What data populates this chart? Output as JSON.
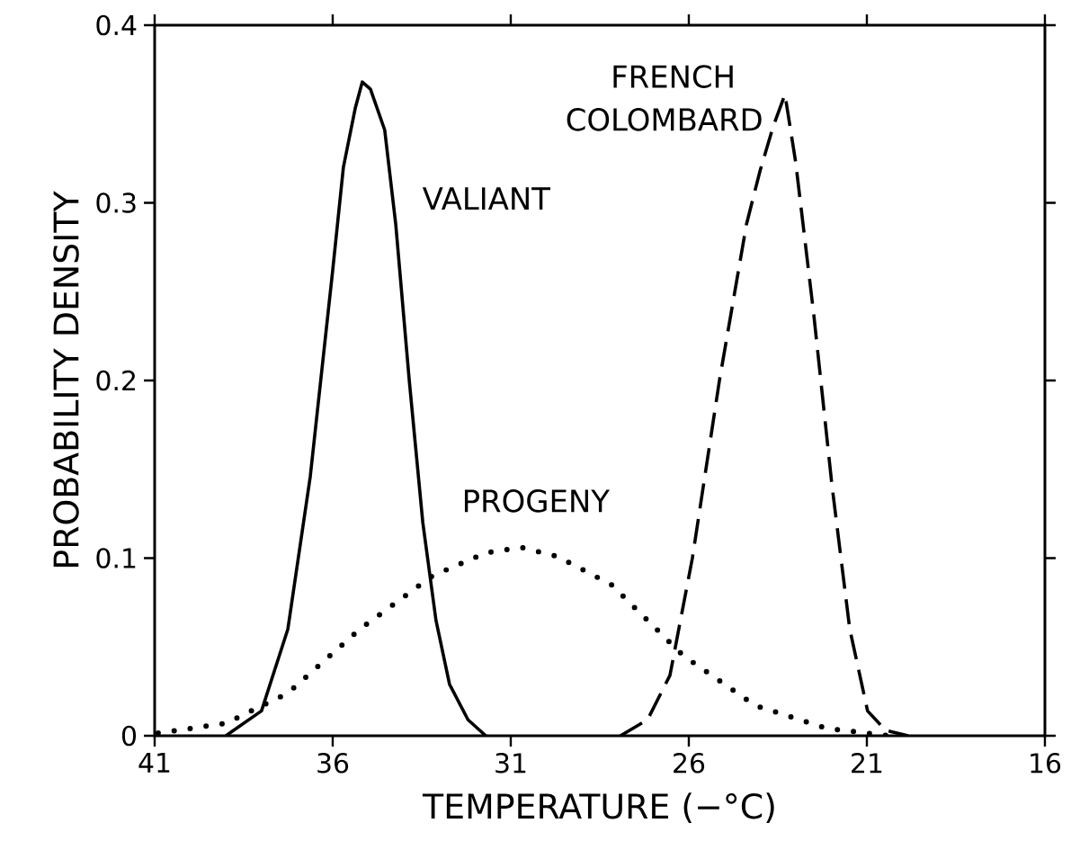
{
  "chart_data": {
    "type": "line",
    "xlabel": "TEMPERATURE (−°C)",
    "ylabel": "PROBABILITY DENSITY",
    "xlim": [
      41,
      16
    ],
    "ylim": [
      0,
      0.4
    ],
    "xticks": [
      41,
      36,
      31,
      26,
      21,
      16
    ],
    "yticks": [
      0,
      0.1,
      0.2,
      0.3,
      0.4
    ],
    "grid": false,
    "series": [
      {
        "name": "VALIANT",
        "color": "#000000",
        "line_style": "solid",
        "x": [
          39.0,
          38.0,
          37.26,
          36.63,
          36.0,
          35.7,
          35.37,
          35.17,
          34.94,
          34.54,
          34.23,
          33.85,
          33.47,
          33.1,
          32.72,
          32.2,
          31.7
        ],
        "values": [
          0,
          0.014,
          0.06,
          0.146,
          0.262,
          0.32,
          0.353,
          0.368,
          0.364,
          0.341,
          0.288,
          0.2,
          0.12,
          0.065,
          0.029,
          0.009,
          0
        ]
      },
      {
        "name": "FRENCH COLOMBARD",
        "color": "#000000",
        "line_style": "dashed",
        "x": [
          27.92,
          27.16,
          26.53,
          25.9,
          25.14,
          24.38,
          24.0,
          23.63,
          23.3,
          23.0,
          22.49,
          21.98,
          21.48,
          20.98,
          20.47,
          19.84
        ],
        "values": [
          0,
          0.009,
          0.034,
          0.1,
          0.2,
          0.288,
          0.318,
          0.343,
          0.361,
          0.323,
          0.237,
          0.141,
          0.06,
          0.014,
          0.003,
          0
        ]
      },
      {
        "name": "PROGENY",
        "color": "#000000",
        "line_style": "dotted",
        "x": [
          40.9,
          39.0,
          37.26,
          35.24,
          33.2,
          31.7,
          30.7,
          29.7,
          28.17,
          26.15,
          24.13,
          22.1,
          20.34
        ],
        "values": [
          0.0015,
          0.007,
          0.024,
          0.06,
          0.09,
          0.103,
          0.106,
          0.101,
          0.085,
          0.045,
          0.017,
          0.004,
          0
        ]
      }
    ]
  }
}
